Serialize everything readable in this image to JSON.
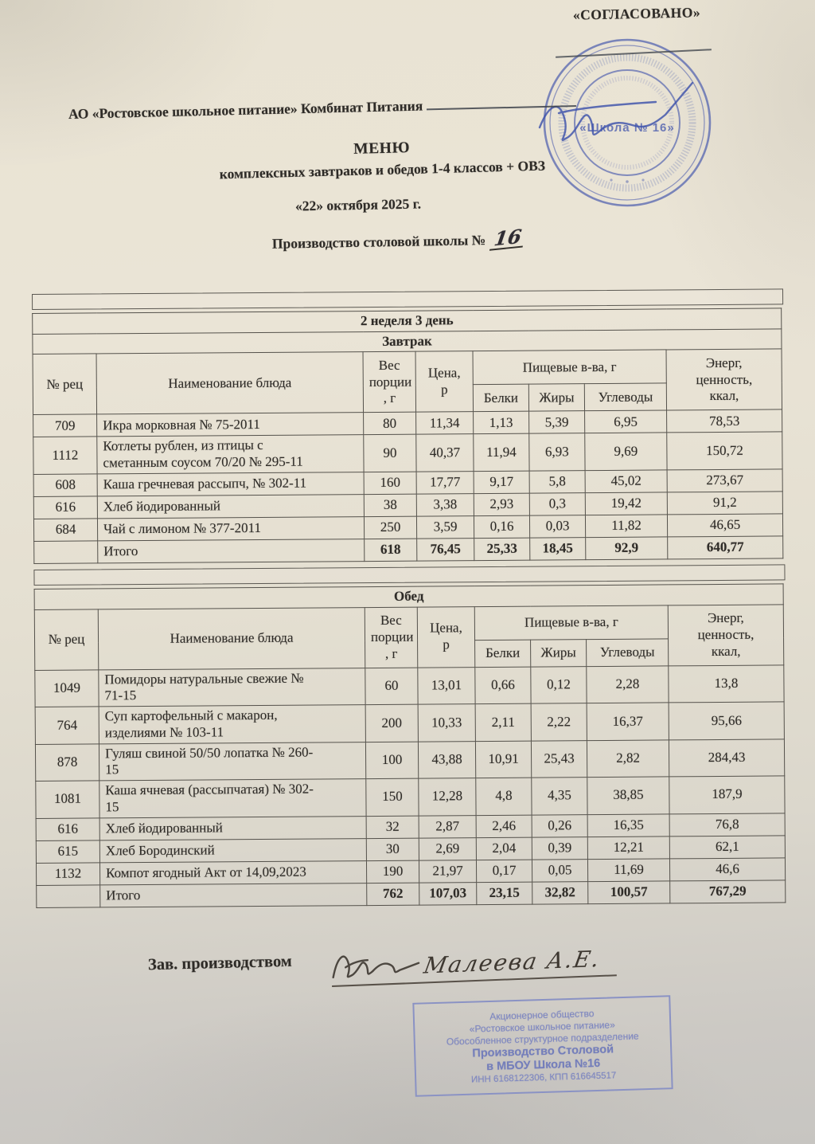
{
  "approval": {
    "label": "«СОГЛАСОВАНО»"
  },
  "round_stamp": {
    "center_text": "«Школа № 16»"
  },
  "header": {
    "org_line": "АО «Ростовское школьное питание» Комбинат Питания",
    "title": "МЕНЮ",
    "subtitle": "комплексных завтраков и обедов 1-4 классов + ОВЗ",
    "date_line": "«22» октября 2025 г.",
    "production_label": "Производство столовой школы №",
    "school_number": "16"
  },
  "table_common": {
    "week_day": "2 неделя 3 день",
    "columns": {
      "rec": "№ рец",
      "dish": "Наименование блюда",
      "weight": "Вес\nпорции\n, г",
      "price": "Цена,\nр",
      "nutrients": "Пищевые в-ва, г",
      "protein": "Белки",
      "fat": "Жиры",
      "carbs": "Углеводы",
      "energy": "Энерг,\nценность,\nккал,"
    }
  },
  "breakfast": {
    "title": "Завтрак",
    "rows": [
      [
        "709",
        "Икра морковная № 75-2011",
        "80",
        "11,34",
        "1,13",
        "5,39",
        "6,95",
        "78,53"
      ],
      [
        "1112",
        "Котлеты рублен, из птицы с\nсметанным соусом 70/20 № 295-11",
        "90",
        "40,37",
        "11,94",
        "6,93",
        "9,69",
        "150,72"
      ],
      [
        "608",
        "Каша гречневая рассыпч, № 302-11",
        "160",
        "17,77",
        "9,17",
        "5,8",
        "45,02",
        "273,67"
      ],
      [
        "616",
        "Хлеб йодированный",
        "38",
        "3,38",
        "2,93",
        "0,3",
        "19,42",
        "91,2"
      ],
      [
        "684",
        "Чай с лимоном № 377-2011",
        "250",
        "3,59",
        "0,16",
        "0,03",
        "11,82",
        "46,65"
      ]
    ],
    "total": [
      "",
      "Итого",
      "618",
      "76,45",
      "25,33",
      "18,45",
      "92,9",
      "640,77"
    ]
  },
  "lunch": {
    "title": "Обед",
    "rows": [
      [
        "1049",
        "Помидоры натуральные свежие №\n71-15",
        "60",
        "13,01",
        "0,66",
        "0,12",
        "2,28",
        "13,8"
      ],
      [
        "764",
        "Суп картофельный с макарон,\nизделиями № 103-11",
        "200",
        "10,33",
        "2,11",
        "2,22",
        "16,37",
        "95,66"
      ],
      [
        "878",
        "Гуляш свиной 50/50 лопатка № 260-\n15",
        "100",
        "43,88",
        "10,91",
        "25,43",
        "2,82",
        "284,43"
      ],
      [
        "1081",
        "Каша ячневая (рассыпчатая) № 302-\n15",
        "150",
        "12,28",
        "4,8",
        "4,35",
        "38,85",
        "187,9"
      ],
      [
        "616",
        "Хлеб йодированный",
        "32",
        "2,87",
        "2,46",
        "0,26",
        "16,35",
        "76,8"
      ],
      [
        "615",
        "Хлеб Бородинский",
        "30",
        "2,69",
        "2,04",
        "0,39",
        "12,21",
        "62,1"
      ],
      [
        "1132",
        "Компот ягодный Акт от 14,09,2023",
        "190",
        "21,97",
        "0,17",
        "0,05",
        "11,69",
        "46,6"
      ]
    ],
    "total": [
      "",
      "Итого",
      "762",
      "107,03",
      "23,15",
      "32,82",
      "100,57",
      "767,29"
    ]
  },
  "footer": {
    "manager_label": "Зав. производством",
    "signature_text": "Малеева А.Е."
  },
  "bottom_stamp": {
    "line1": "Акционерное общество",
    "line2": "«Ростовское школьное питание»",
    "line3": "Обособленное структурное подразделение",
    "line4": "Производство Столовой",
    "line5": "в МБОУ Школа №16",
    "line6": "ИНН 6168122306,  КПП 616645517"
  }
}
